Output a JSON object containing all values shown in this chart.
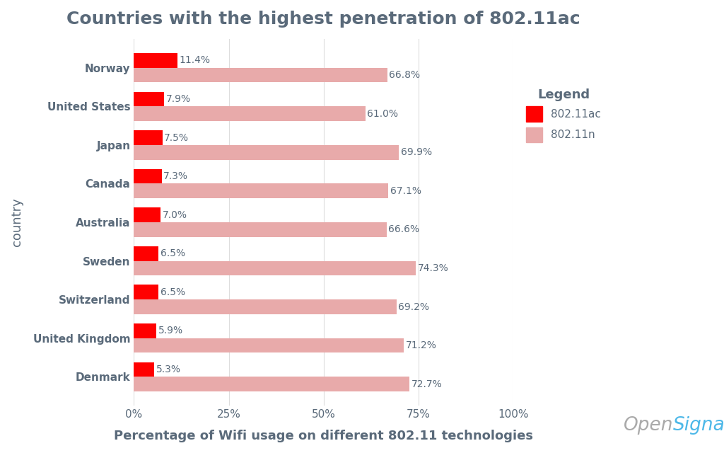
{
  "title": "Countries with the highest penetration of 802.11ac",
  "xlabel": "Percentage of Wifi usage on different 802.11 technologies",
  "ylabel": "country",
  "countries": [
    "Norway",
    "United States",
    "Japan",
    "Canada",
    "Australia",
    "Sweden",
    "Switzerland",
    "United Kingdom",
    "Denmark"
  ],
  "ac_values": [
    11.4,
    7.9,
    7.5,
    7.3,
    7.0,
    6.5,
    6.5,
    5.9,
    5.3
  ],
  "n_values": [
    66.8,
    61.0,
    69.9,
    67.1,
    66.6,
    74.3,
    69.2,
    71.2,
    72.7
  ],
  "ac_color": "#ff0000",
  "n_color": "#e8aaaa",
  "bg_color": "#ffffff",
  "title_color": "#5a6a7a",
  "label_color": "#5a6a7a",
  "bar_height": 0.38,
  "xlim": [
    0,
    100
  ],
  "xticks": [
    0,
    25,
    50,
    75,
    100
  ],
  "xtick_labels": [
    "0%",
    "25%",
    "50%",
    "75%",
    "100%"
  ],
  "legend_title": "Legend",
  "legend_ac_label": "802.11ac",
  "legend_n_label": "802.11n",
  "title_fontsize": 18,
  "axis_label_fontsize": 13,
  "tick_fontsize": 11,
  "bar_label_fontsize": 10,
  "country_fontsize": 11,
  "opensignal_color_open": "#aaaaaa",
  "opensignal_color_signal": "#4db8e8"
}
